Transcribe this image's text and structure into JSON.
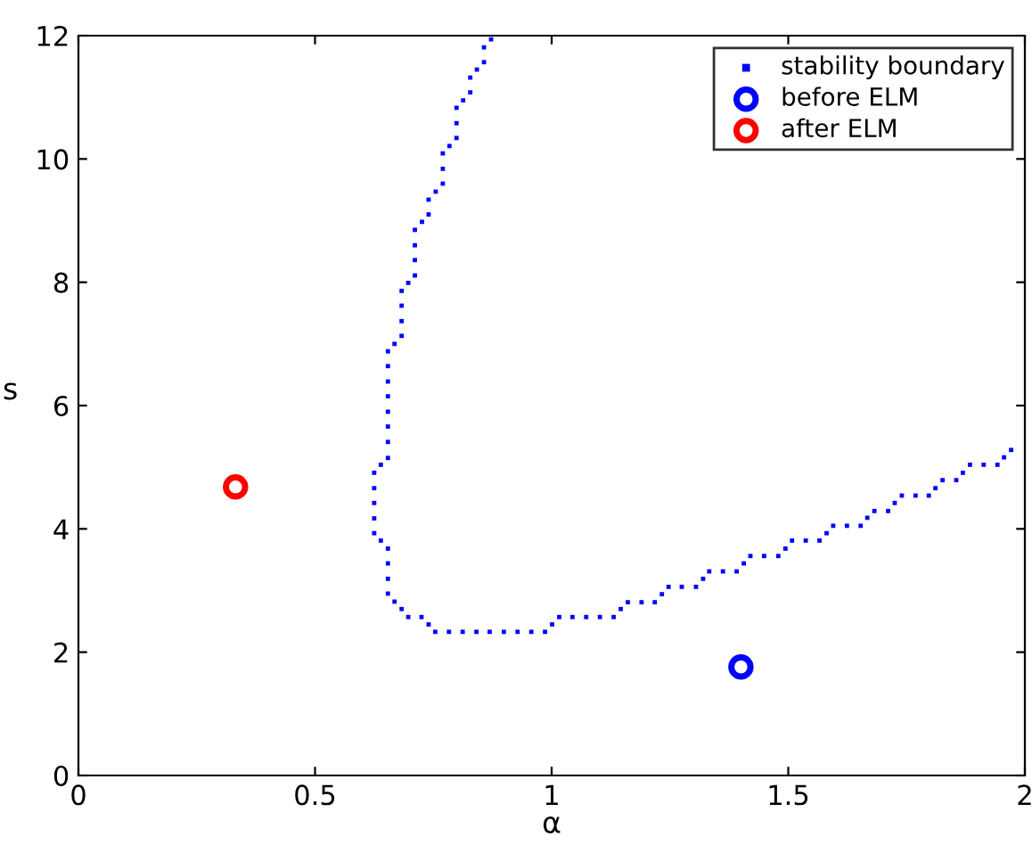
{
  "chart_data": {
    "type": "scatter",
    "xlabel": "α",
    "ylabel": "s",
    "xlim": [
      0,
      2
    ],
    "ylim": [
      0,
      12
    ],
    "xticks": [
      0,
      0.5,
      1,
      1.5,
      2
    ],
    "yticks": [
      0,
      2,
      4,
      6,
      8,
      10,
      12
    ],
    "grid": false,
    "legend": "top right",
    "series": [
      {
        "name": "stability boundary",
        "color": "#0000ff",
        "marker": "square",
        "x": [
          0.872,
          0.857,
          0.857,
          0.842,
          0.828,
          0.828,
          0.813,
          0.799,
          0.799,
          0.799,
          0.784,
          0.77,
          0.77,
          0.77,
          0.755,
          0.74,
          0.74,
          0.726,
          0.711,
          0.711,
          0.711,
          0.711,
          0.697,
          0.683,
          0.683,
          0.683,
          0.683,
          0.668,
          0.654,
          0.654,
          0.654,
          0.654,
          0.654,
          0.654,
          0.654,
          0.654,
          0.639,
          0.625,
          0.625,
          0.625,
          0.625,
          0.625,
          0.639,
          0.654,
          0.654,
          0.654,
          0.654,
          0.668,
          0.683,
          0.697,
          0.725,
          0.74,
          0.754,
          0.783,
          0.812,
          0.841,
          0.869,
          0.899,
          0.928,
          0.957,
          0.986,
          1.001,
          1.016,
          1.044,
          1.073,
          1.102,
          1.131,
          1.146,
          1.161,
          1.19,
          1.218,
          1.233,
          1.247,
          1.275,
          1.305,
          1.32,
          1.333,
          1.362,
          1.391,
          1.406,
          1.42,
          1.449,
          1.479,
          1.494,
          1.508,
          1.537,
          1.566,
          1.581,
          1.595,
          1.624,
          1.653,
          1.667,
          1.682,
          1.711,
          1.725,
          1.74,
          1.769,
          1.797,
          1.811,
          1.826,
          1.855,
          1.869,
          1.884,
          1.913,
          1.942,
          1.956,
          1.971
        ],
        "values": [
          11.94,
          11.81,
          11.57,
          11.45,
          11.32,
          11.08,
          10.95,
          10.83,
          10.58,
          10.34,
          10.21,
          10.09,
          9.84,
          9.6,
          9.47,
          9.34,
          9.1,
          8.98,
          8.85,
          8.6,
          8.36,
          8.11,
          7.99,
          7.86,
          7.62,
          7.37,
          7.13,
          7.0,
          6.88,
          6.64,
          6.39,
          6.15,
          5.9,
          5.66,
          5.41,
          5.15,
          5.04,
          4.91,
          4.66,
          4.42,
          4.17,
          3.93,
          3.81,
          3.68,
          3.44,
          3.19,
          2.95,
          2.82,
          2.7,
          2.57,
          2.57,
          2.45,
          2.33,
          2.33,
          2.33,
          2.33,
          2.33,
          2.33,
          2.33,
          2.33,
          2.33,
          2.45,
          2.57,
          2.57,
          2.57,
          2.57,
          2.57,
          2.7,
          2.81,
          2.81,
          2.81,
          2.94,
          3.06,
          3.06,
          3.06,
          3.19,
          3.31,
          3.31,
          3.31,
          3.44,
          3.56,
          3.56,
          3.56,
          3.68,
          3.81,
          3.81,
          3.81,
          3.93,
          4.05,
          4.05,
          4.05,
          4.18,
          4.29,
          4.29,
          4.42,
          4.54,
          4.54,
          4.54,
          4.66,
          4.79,
          4.79,
          4.91,
          5.04,
          5.04,
          5.04,
          5.16,
          5.28
        ]
      },
      {
        "name": "before ELM",
        "color": "#0000ff",
        "marker": "circle",
        "x": [
          1.4
        ],
        "values": [
          1.76
        ]
      },
      {
        "name": "after ELM",
        "color": "#ff0000",
        "marker": "circle",
        "x": [
          0.332
        ],
        "values": [
          4.68
        ]
      }
    ]
  }
}
